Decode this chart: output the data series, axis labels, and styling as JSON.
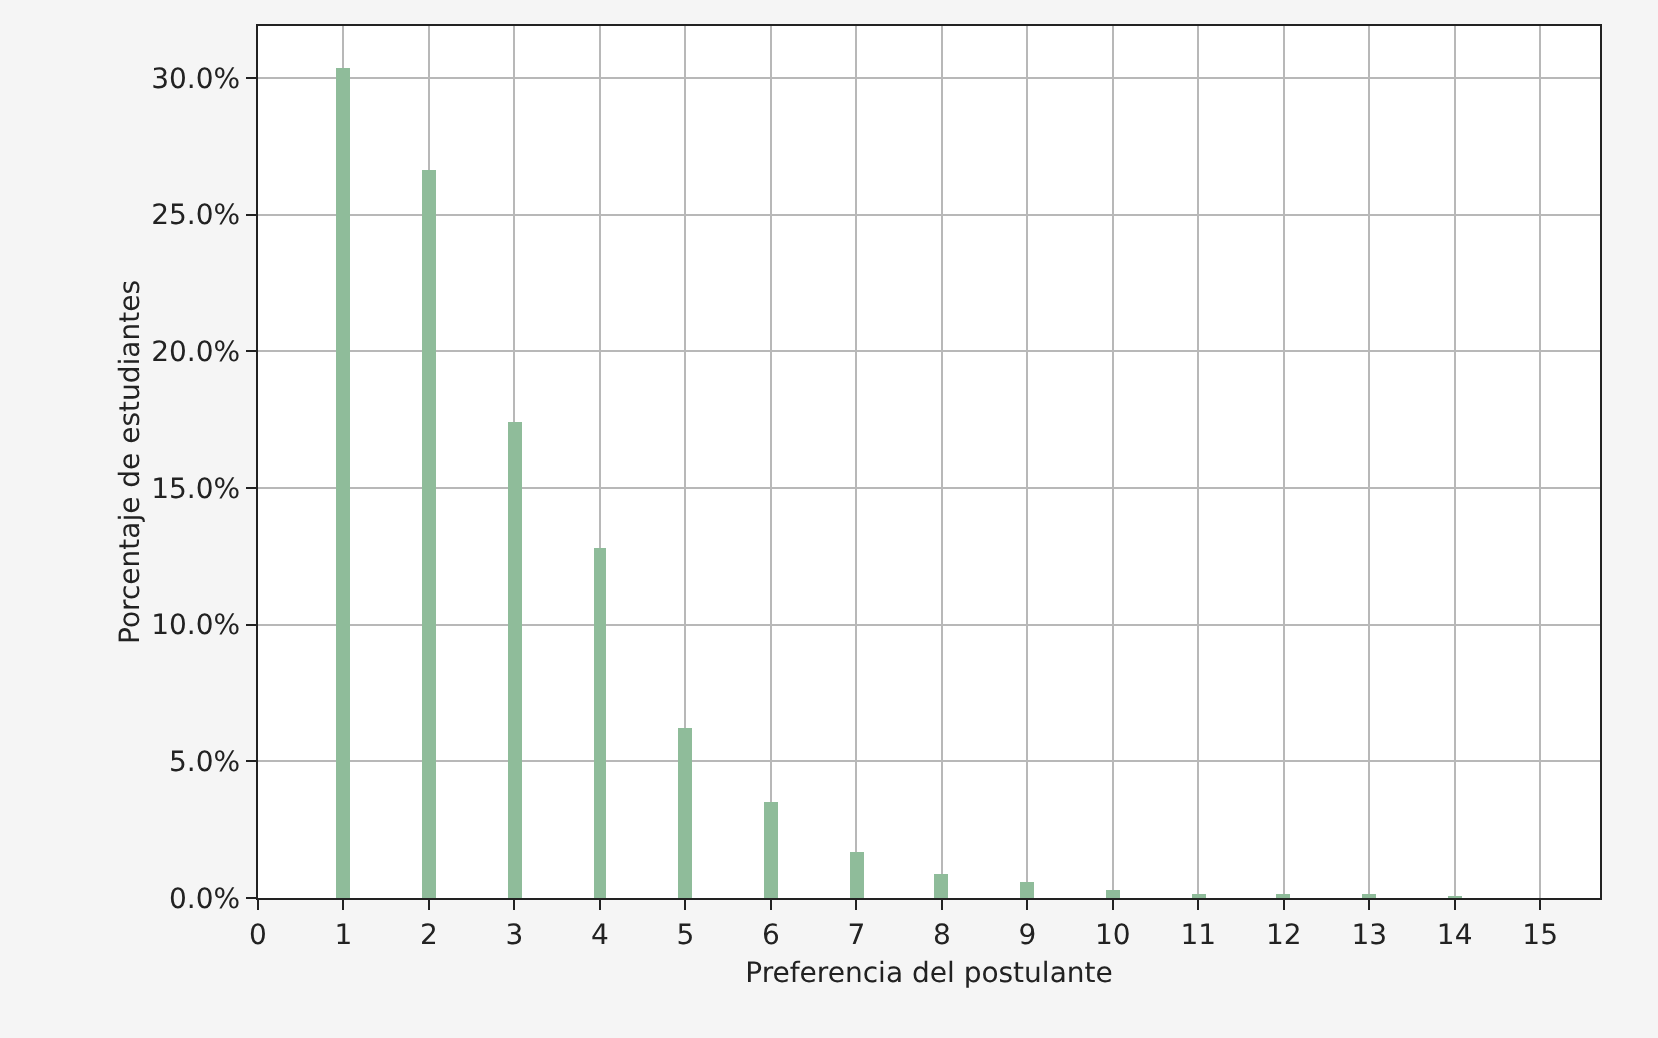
{
  "chart_data": {
    "type": "bar",
    "xlabel": "Preferencia del postulante",
    "ylabel": "Porcentaje de estudiantes",
    "x": [
      1,
      2,
      3,
      4,
      5,
      6,
      7,
      8,
      9,
      10,
      11,
      12,
      13,
      14
    ],
    "values": [
      30.4,
      26.6,
      17.4,
      12.8,
      6.2,
      3.5,
      1.7,
      0.9,
      0.6,
      0.3,
      0.15,
      0.1,
      0.1,
      0.05
    ],
    "color": "#8fbc9a",
    "xlim": [
      0,
      15.7
    ],
    "xticks": [
      0,
      1,
      2,
      3,
      4,
      5,
      6,
      7,
      8,
      9,
      10,
      11,
      12,
      13,
      14,
      15
    ],
    "ylim": [
      0,
      31.9
    ],
    "yticks": [
      {
        "value": 0,
        "label": "0.0%"
      },
      {
        "value": 5,
        "label": "5.0%"
      },
      {
        "value": 10,
        "label": "10.0%"
      },
      {
        "value": 15,
        "label": "15.0%"
      },
      {
        "value": 20,
        "label": "20.0%"
      },
      {
        "value": 25,
        "label": "25.0%"
      },
      {
        "value": 30,
        "label": "30.0%"
      }
    ],
    "grid": true
  }
}
